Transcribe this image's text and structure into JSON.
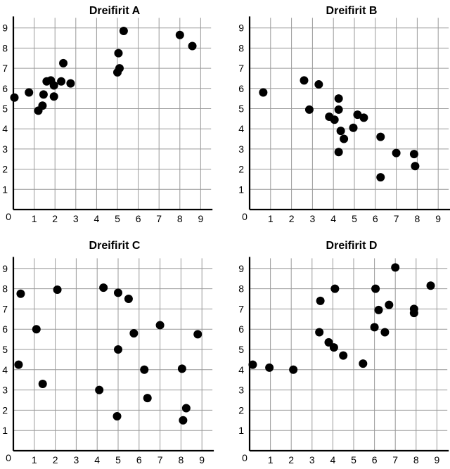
{
  "chart_data": [
    {
      "type": "scatter",
      "title": "Dreifirit A",
      "xlim": [
        0,
        9.5
      ],
      "ylim": [
        0,
        9.5
      ],
      "x_ticks": [
        "0",
        "1",
        "2",
        "3",
        "4",
        "5",
        "6",
        "7",
        "8",
        "9"
      ],
      "y_ticks": [
        "1",
        "2",
        "3",
        "4",
        "5",
        "6",
        "7",
        "8",
        "9"
      ],
      "grid": true,
      "points": [
        {
          "x": 0.05,
          "y": 5.55
        },
        {
          "x": 0.75,
          "y": 5.8
        },
        {
          "x": 1.2,
          "y": 4.9
        },
        {
          "x": 1.4,
          "y": 5.15
        },
        {
          "x": 1.45,
          "y": 5.7
        },
        {
          "x": 1.6,
          "y": 6.35
        },
        {
          "x": 1.8,
          "y": 6.4
        },
        {
          "x": 1.95,
          "y": 6.15
        },
        {
          "x": 1.95,
          "y": 5.6
        },
        {
          "x": 2.3,
          "y": 6.35
        },
        {
          "x": 2.4,
          "y": 7.25
        },
        {
          "x": 2.75,
          "y": 6.25
        },
        {
          "x": 5.0,
          "y": 6.8
        },
        {
          "x": 5.05,
          "y": 7.75
        },
        {
          "x": 5.1,
          "y": 7.0
        },
        {
          "x": 5.3,
          "y": 8.85
        },
        {
          "x": 8.0,
          "y": 8.65
        },
        {
          "x": 8.6,
          "y": 8.1
        }
      ]
    },
    {
      "type": "scatter",
      "title": "Dreifirit B",
      "xlim": [
        0,
        9.5
      ],
      "ylim": [
        0,
        9.5
      ],
      "x_ticks": [
        "0",
        "1",
        "2",
        "3",
        "4",
        "5",
        "6",
        "7",
        "8",
        "9"
      ],
      "y_ticks": [
        "1",
        "2",
        "3",
        "4",
        "5",
        "6",
        "7",
        "8",
        "9"
      ],
      "grid": true,
      "points": [
        {
          "x": 0.65,
          "y": 5.8
        },
        {
          "x": 2.6,
          "y": 6.4
        },
        {
          "x": 2.85,
          "y": 4.95
        },
        {
          "x": 3.3,
          "y": 6.2
        },
        {
          "x": 3.8,
          "y": 4.6
        },
        {
          "x": 4.05,
          "y": 4.45
        },
        {
          "x": 4.25,
          "y": 5.5
        },
        {
          "x": 4.25,
          "y": 4.95
        },
        {
          "x": 4.25,
          "y": 2.85
        },
        {
          "x": 4.35,
          "y": 3.9
        },
        {
          "x": 4.5,
          "y": 3.5
        },
        {
          "x": 4.95,
          "y": 4.05
        },
        {
          "x": 5.15,
          "y": 4.7
        },
        {
          "x": 5.45,
          "y": 4.55
        },
        {
          "x": 6.25,
          "y": 3.6
        },
        {
          "x": 6.25,
          "y": 1.6
        },
        {
          "x": 7.0,
          "y": 2.8
        },
        {
          "x": 7.85,
          "y": 2.75
        },
        {
          "x": 7.9,
          "y": 2.15
        }
      ]
    },
    {
      "type": "scatter",
      "title": "Dreifirit C",
      "xlim": [
        0,
        9.5
      ],
      "ylim": [
        0,
        9.5
      ],
      "x_ticks": [
        "0",
        "1",
        "2",
        "3",
        "4",
        "5",
        "6",
        "7",
        "8",
        "9"
      ],
      "y_ticks": [
        "1",
        "2",
        "3",
        "4",
        "5",
        "6",
        "7",
        "8",
        "9"
      ],
      "grid": true,
      "points": [
        {
          "x": 0.25,
          "y": 4.25
        },
        {
          "x": 0.35,
          "y": 7.75
        },
        {
          "x": 1.1,
          "y": 6.0
        },
        {
          "x": 1.4,
          "y": 3.3
        },
        {
          "x": 2.1,
          "y": 7.95
        },
        {
          "x": 4.1,
          "y": 3.0
        },
        {
          "x": 4.3,
          "y": 8.05
        },
        {
          "x": 4.95,
          "y": 1.7
        },
        {
          "x": 5.0,
          "y": 5.0
        },
        {
          "x": 5.0,
          "y": 7.8
        },
        {
          "x": 5.5,
          "y": 7.5
        },
        {
          "x": 5.75,
          "y": 5.8
        },
        {
          "x": 6.25,
          "y": 4.0
        },
        {
          "x": 6.4,
          "y": 2.6
        },
        {
          "x": 7.0,
          "y": 6.2
        },
        {
          "x": 8.05,
          "y": 4.05
        },
        {
          "x": 8.1,
          "y": 1.5
        },
        {
          "x": 8.25,
          "y": 2.1
        },
        {
          "x": 8.8,
          "y": 5.75
        }
      ]
    },
    {
      "type": "scatter",
      "title": "Dreifirit D",
      "xlim": [
        0,
        9.5
      ],
      "ylim": [
        0,
        9.5
      ],
      "x_ticks": [
        "0",
        "1",
        "2",
        "3",
        "4",
        "5",
        "6",
        "7",
        "8",
        "9"
      ],
      "y_ticks": [
        "1",
        "2",
        "3",
        "4",
        "5",
        "6",
        "7",
        "8",
        "9"
      ],
      "grid": true,
      "points": [
        {
          "x": 0.15,
          "y": 4.25
        },
        {
          "x": 0.95,
          "y": 4.1
        },
        {
          "x": 2.1,
          "y": 4.0
        },
        {
          "x": 3.35,
          "y": 5.85
        },
        {
          "x": 3.4,
          "y": 7.4
        },
        {
          "x": 3.8,
          "y": 5.35
        },
        {
          "x": 4.05,
          "y": 5.1
        },
        {
          "x": 4.1,
          "y": 8.0
        },
        {
          "x": 4.5,
          "y": 4.7
        },
        {
          "x": 5.45,
          "y": 4.3
        },
        {
          "x": 6.0,
          "y": 6.1
        },
        {
          "x": 6.05,
          "y": 8.0
        },
        {
          "x": 6.2,
          "y": 6.95
        },
        {
          "x": 6.5,
          "y": 5.85
        },
        {
          "x": 6.7,
          "y": 7.2
        },
        {
          "x": 7.0,
          "y": 9.05
        },
        {
          "x": 7.9,
          "y": 7.0
        },
        {
          "x": 7.9,
          "y": 6.8
        },
        {
          "x": 8.7,
          "y": 8.15
        }
      ]
    }
  ]
}
